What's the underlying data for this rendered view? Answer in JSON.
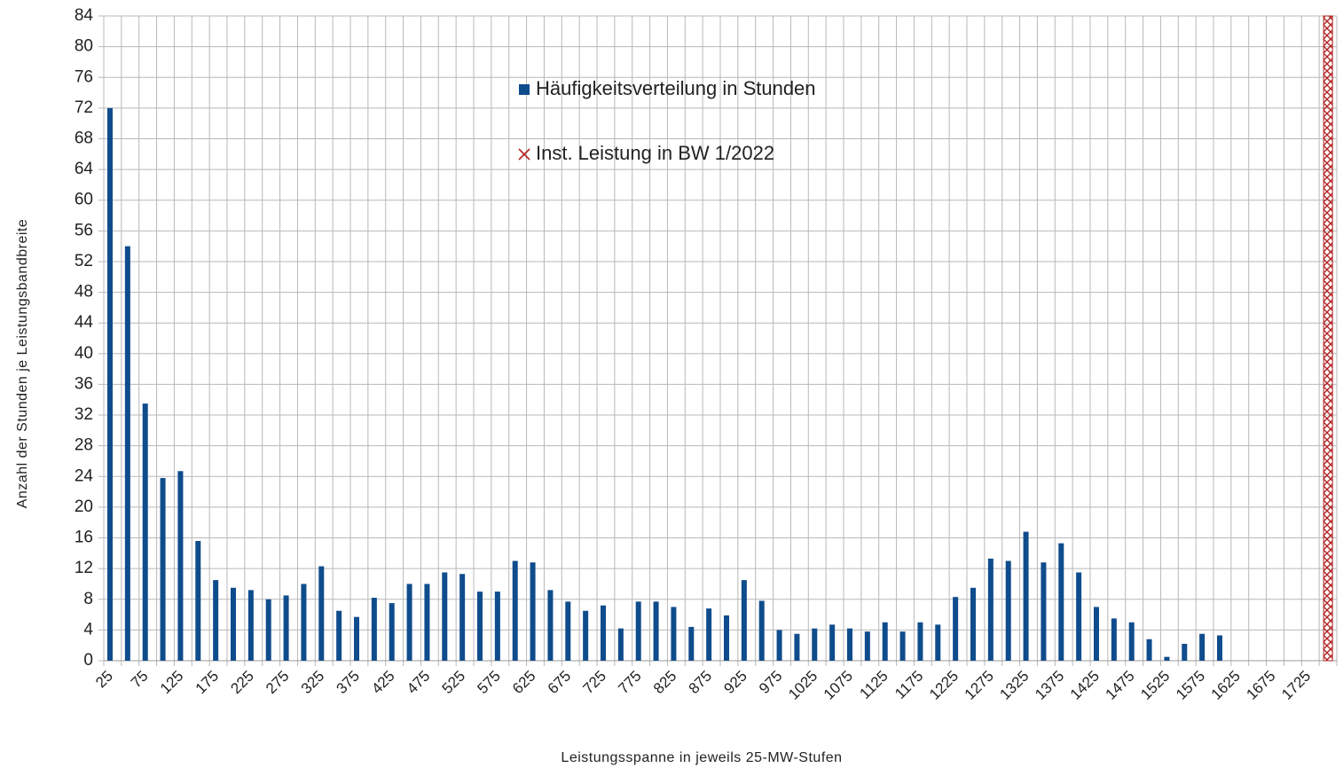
{
  "chart_data": {
    "type": "bar",
    "x_label": "Leistungsspanne in jeweils 25-MW-Stufen",
    "y_label": "Anzahl der Stunden je Leistungsbandbreite",
    "categories": [
      "25",
      null,
      "75",
      null,
      "125",
      null,
      "175",
      null,
      "225",
      null,
      "275",
      null,
      "325",
      null,
      "375",
      null,
      "425",
      null,
      "475",
      null,
      "525",
      null,
      "575",
      null,
      "625",
      null,
      "675",
      null,
      "725",
      null,
      "775",
      null,
      "825",
      null,
      "875",
      null,
      "925",
      null,
      "975",
      null,
      "1025",
      null,
      "1075",
      null,
      "1125",
      null,
      "1175",
      null,
      "1225",
      null,
      "1275",
      null,
      "1325",
      null,
      "1375",
      null,
      "1425",
      null,
      "1475",
      null,
      "1525",
      null,
      "1575",
      null,
      "1625",
      null,
      "1675",
      null,
      "1725",
      null
    ],
    "series": [
      {
        "name": "Häufigkeitsverteilung in Stunden",
        "color": "#0f4c8c",
        "values": [
          72,
          54,
          33.5,
          23.8,
          24.7,
          15.6,
          10.5,
          9.5,
          9.2,
          8.0,
          8.5,
          10,
          12.3,
          6.5,
          5.7,
          8.2,
          7.5,
          10,
          10,
          11.5,
          11.3,
          9,
          9,
          13,
          12.8,
          9.2,
          7.7,
          6.5,
          7.2,
          4.2,
          7.7,
          7.7,
          7,
          4.4,
          6.8,
          5.9,
          10.5,
          7.8,
          4,
          3.5,
          4.2,
          4.7,
          4.2,
          3.8,
          5,
          3.8,
          5,
          4.7,
          8.3,
          9.5,
          13.3,
          13,
          16.8,
          12.8,
          15.3,
          11.5,
          7,
          5.5,
          5,
          2.8,
          0.5,
          2.2,
          3.5,
          3.3,
          null,
          null,
          null,
          null,
          null,
          null
        ]
      },
      {
        "name": "Inst. Leistung in BW 1/2022",
        "color": "#b22222",
        "values": [
          null,
          null,
          null,
          null,
          null,
          null,
          null,
          null,
          null,
          null,
          null,
          null,
          null,
          null,
          null,
          null,
          null,
          null,
          null,
          null,
          null,
          null,
          null,
          null,
          null,
          null,
          null,
          null,
          null,
          null,
          null,
          null,
          null,
          null,
          null,
          null,
          null,
          null,
          null,
          null,
          null,
          null,
          null,
          null,
          null,
          null,
          null,
          null,
          null,
          null,
          null,
          null,
          null,
          null,
          null,
          null,
          null,
          null,
          null,
          null,
          null,
          null,
          null,
          null,
          null,
          null,
          null,
          null,
          null,
          84
        ]
      }
    ],
    "ylim": [
      0,
      84
    ],
    "yticks": [
      0,
      4,
      8,
      12,
      16,
      20,
      24,
      28,
      32,
      36,
      40,
      44,
      48,
      52,
      56,
      60,
      64,
      68,
      72,
      76,
      80,
      84
    ],
    "grid": true
  }
}
